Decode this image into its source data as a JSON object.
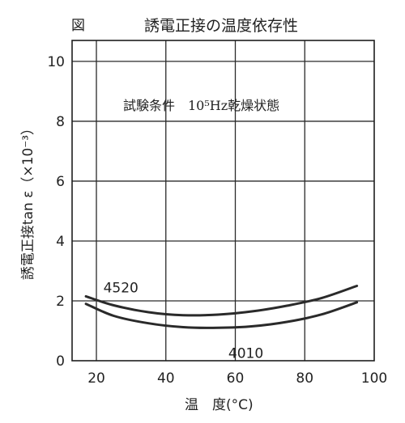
{
  "chart_data": {
    "type": "line",
    "figure_label": "図",
    "title": "誘電正接の温度依存性",
    "note": "試験条件　10⁵Hz乾燥状態",
    "xlabel": "温　度(°C)",
    "ylabel": "誘電正接tan ε（×10⁻³）",
    "xlim": [
      13,
      100
    ],
    "ylim": [
      0,
      10.7
    ],
    "xticks": [
      20,
      40,
      60,
      80,
      100
    ],
    "yticks": [
      0,
      2,
      4,
      6,
      8,
      10
    ],
    "grid": true,
    "series": [
      {
        "name": "4520",
        "x": [
          17,
          25,
          35,
          45,
          55,
          65,
          75,
          85,
          95
        ],
        "y": [
          2.15,
          1.85,
          1.62,
          1.52,
          1.54,
          1.65,
          1.84,
          2.1,
          2.5
        ]
      },
      {
        "name": "4010",
        "x": [
          17,
          25,
          35,
          45,
          55,
          65,
          75,
          85,
          95
        ],
        "y": [
          1.9,
          1.5,
          1.25,
          1.12,
          1.1,
          1.15,
          1.3,
          1.55,
          1.95
        ]
      }
    ]
  }
}
